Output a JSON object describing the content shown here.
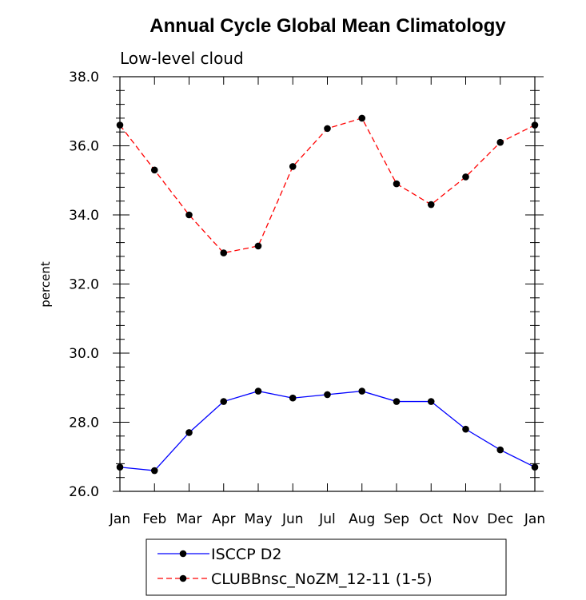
{
  "chart_data": {
    "type": "line",
    "title": "Annual Cycle Global Mean Climatology",
    "subtitle": "Low-level cloud",
    "ylabel": "percent",
    "xlabel": "",
    "categories": [
      "Jan",
      "Feb",
      "Mar",
      "Apr",
      "May",
      "Jun",
      "Jul",
      "Aug",
      "Sep",
      "Oct",
      "Nov",
      "Dec",
      "Jan"
    ],
    "ylim": [
      26.0,
      38.0
    ],
    "y_ticks": [
      "26.0",
      "28.0",
      "30.0",
      "32.0",
      "34.0",
      "36.0",
      "38.0"
    ],
    "y_tick_values": [
      26,
      28,
      30,
      32,
      34,
      36,
      38
    ],
    "grid": false,
    "legend_position": "bottom",
    "series": [
      {
        "name": "ISCCP D2",
        "color": "#0000ff",
        "line_style": "solid",
        "marker": "filled-circle",
        "values": [
          26.7,
          26.6,
          27.7,
          28.6,
          28.9,
          28.7,
          28.8,
          28.9,
          28.6,
          28.6,
          27.8,
          27.2,
          26.7
        ]
      },
      {
        "name": "CLUBBnsc_NoZM_12-11 (1-5)",
        "color": "#ff0000",
        "line_style": "dashed",
        "marker": "filled-circle",
        "values": [
          36.6,
          35.3,
          34.0,
          32.9,
          33.1,
          35.4,
          36.5,
          36.8,
          34.9,
          34.3,
          35.1,
          36.1,
          36.6
        ]
      }
    ]
  }
}
